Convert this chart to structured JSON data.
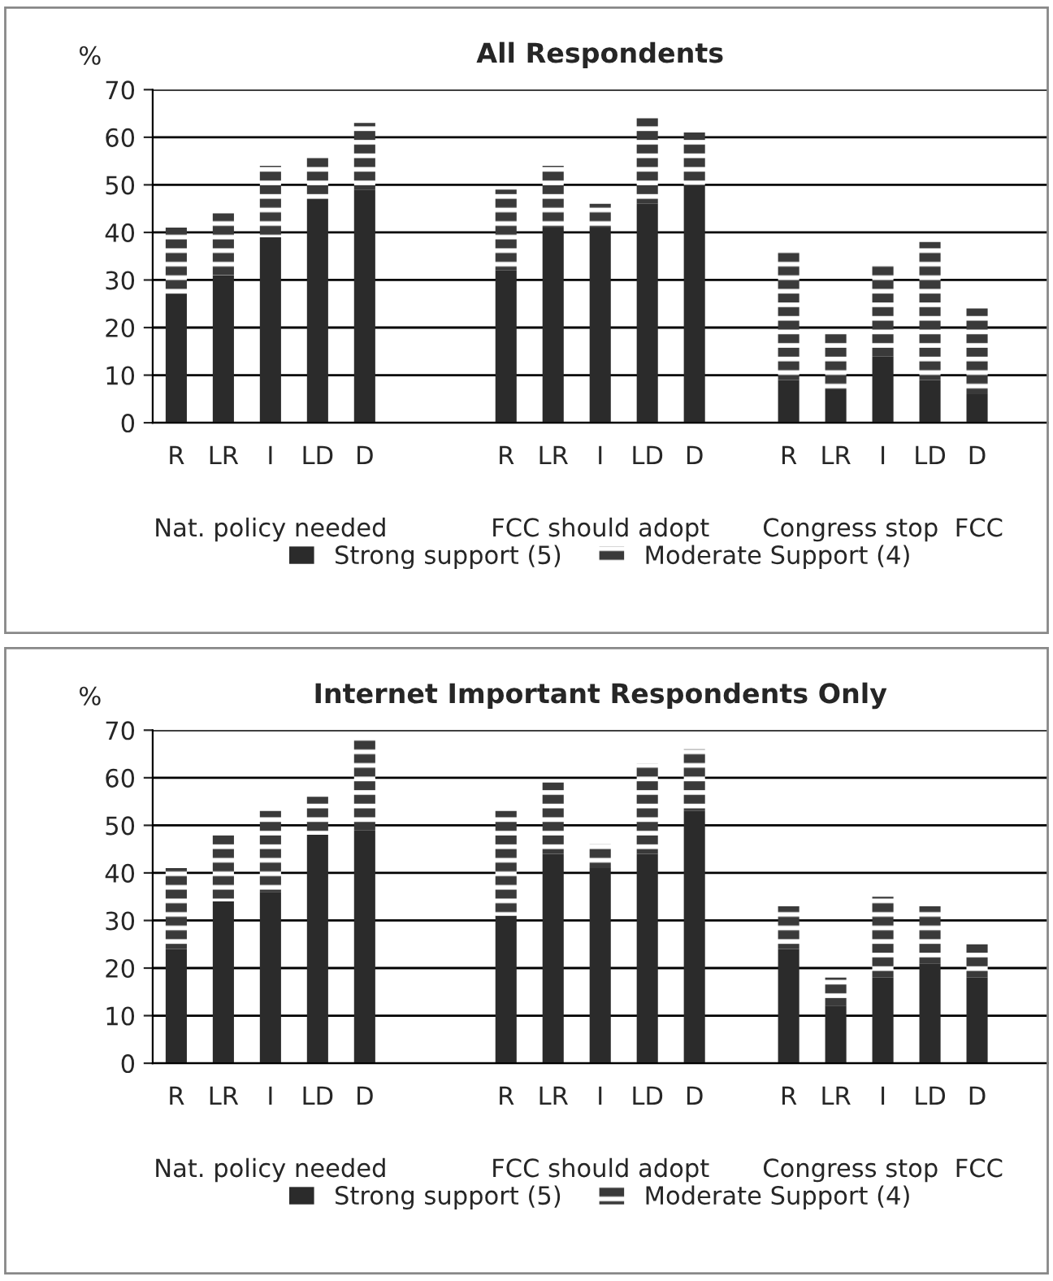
{
  "chart_data": [
    {
      "type": "bar",
      "title": "All Respondents",
      "ylabel": "%",
      "stacked": true,
      "grid": "y",
      "legend": "bottom",
      "categories": [
        "R",
        "LR",
        "I",
        "LD",
        "D",
        null,
        null,
        "R",
        "LR",
        "I",
        "LD",
        "D",
        null,
        "R",
        "LR",
        "I",
        "LD",
        "D",
        null
      ],
      "series": [
        {
          "name": "Strong support (5)",
          "color": "#2b2b2b",
          "values": [
            27,
            31,
            39,
            47,
            49,
            null,
            null,
            32,
            41,
            41,
            46,
            50,
            null,
            9,
            7,
            14,
            9,
            6,
            null
          ]
        },
        {
          "name": "Moderate Support (4)",
          "color": "#3a3a3a",
          "values": [
            14,
            13,
            15,
            9,
            14,
            null,
            null,
            17,
            13,
            5,
            18,
            11,
            null,
            27,
            12,
            19,
            29,
            18,
            null
          ]
        }
      ],
      "ylim": [
        0,
        70
      ],
      "yticks": [
        0,
        10,
        20,
        30,
        40,
        50,
        60,
        70
      ],
      "annotations": [
        "Nat. policy needed",
        "FCC should adopt",
        "Congress stop  FCC"
      ]
    },
    {
      "type": "bar",
      "title": "Internet Important Respondents Only",
      "ylabel": "%",
      "stacked": true,
      "grid": "y",
      "legend": "bottom",
      "categories": [
        "R",
        "LR",
        "I",
        "LD",
        "D",
        null,
        null,
        "R",
        "LR",
        "I",
        "LD",
        "D",
        null,
        "R",
        "LR",
        "I",
        "LD",
        "D",
        null
      ],
      "series": [
        {
          "name": "Strong support (5)",
          "color": "#2b2b2b",
          "values": [
            24,
            34,
            36,
            48,
            49,
            null,
            null,
            31,
            44,
            41,
            44,
            53,
            null,
            24,
            12,
            18,
            21,
            18,
            null
          ]
        },
        {
          "name": "Moderate Support (4)",
          "color": "#3a3a3a",
          "values": [
            17,
            14,
            17,
            8,
            19,
            null,
            null,
            22,
            15,
            5,
            19,
            13,
            null,
            9,
            6,
            17,
            12,
            7,
            null
          ]
        }
      ],
      "ylim": [
        0,
        70
      ],
      "yticks": [
        0,
        10,
        20,
        30,
        40,
        50,
        60,
        70
      ],
      "annotations": [
        "Nat. policy needed",
        "FCC should adopt",
        "Congress stop  FCC"
      ]
    }
  ]
}
